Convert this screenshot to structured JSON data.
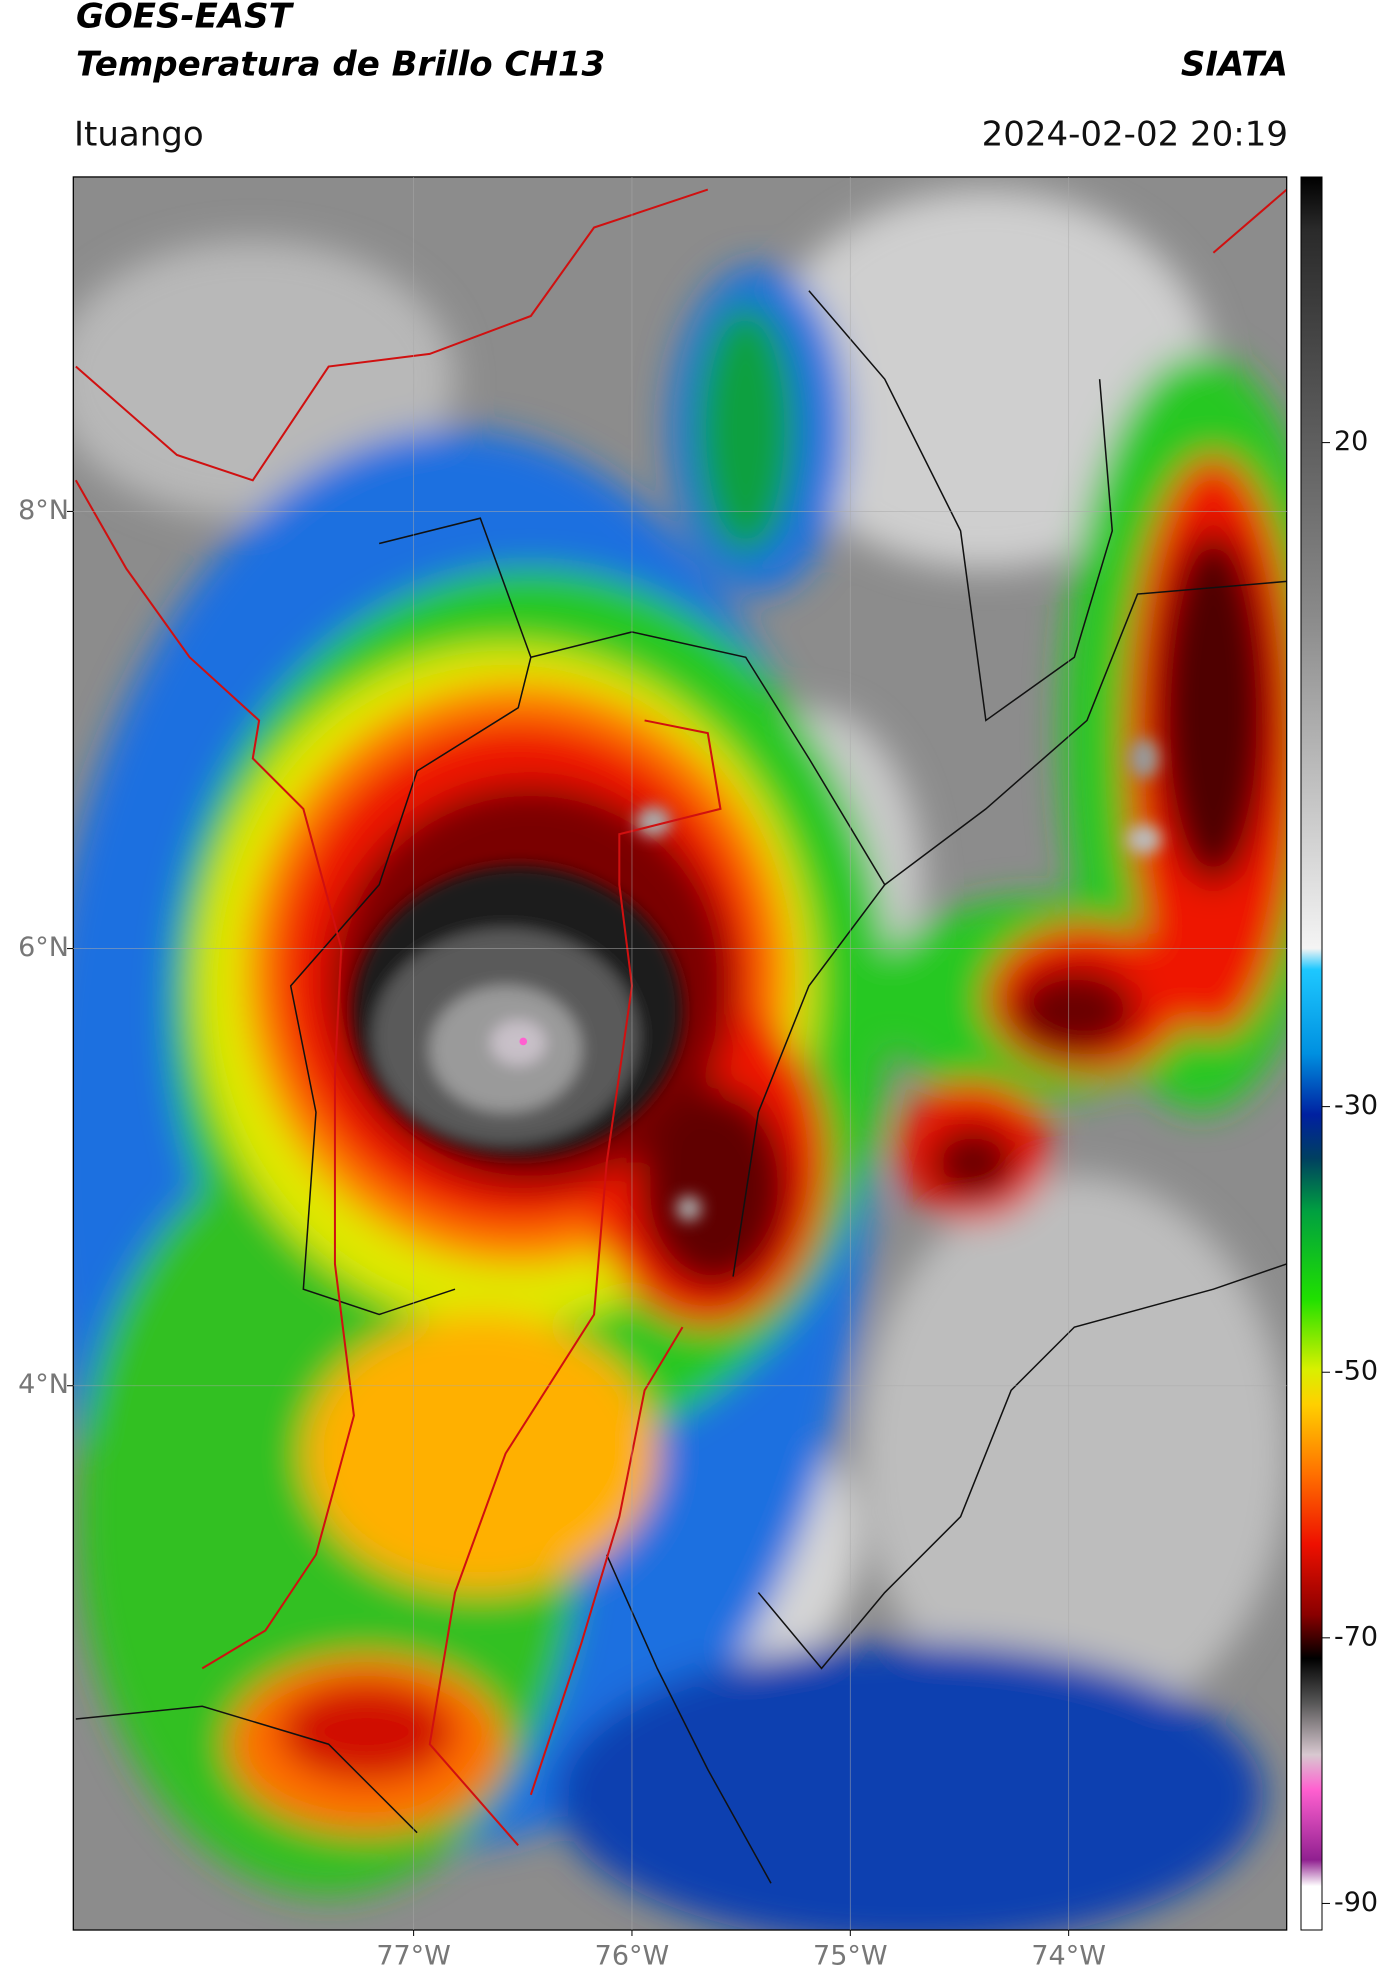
{
  "map": {
    "title": "GOES-EAST",
    "subtitle": "Temperatura de Brillo CH13",
    "source": "SIATA",
    "location": "Ituango",
    "datetime": "2024-02-02 20:19",
    "xlim": [
      -78.56,
      -73.0
    ],
    "ylim": [
      1.51,
      9.53
    ],
    "xticks": [
      {
        "value": -77,
        "label": "77°W"
      },
      {
        "value": -76,
        "label": "76°W"
      },
      {
        "value": -75,
        "label": "75°W"
      },
      {
        "value": -74,
        "label": "74°W"
      }
    ],
    "yticks": [
      {
        "value": 8,
        "label": "8°N"
      },
      {
        "value": 6,
        "label": "6°N"
      },
      {
        "value": 4,
        "label": "4°N"
      }
    ],
    "grid": true,
    "colorbar": {
      "clim": [
        -92,
        40
      ],
      "ticks": [
        20,
        -30,
        -50,
        -70,
        -90
      ]
    }
  }
}
